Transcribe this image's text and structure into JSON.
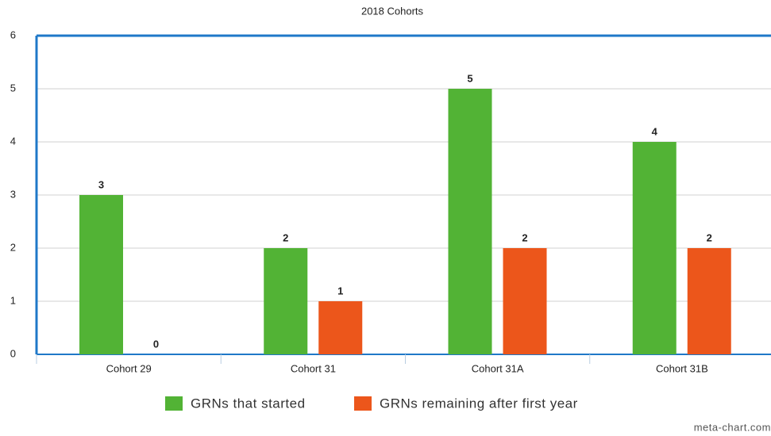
{
  "chart_data": {
    "type": "bar",
    "title": "2018 Cohorts",
    "categories": [
      "Cohort 29",
      "Cohort 31",
      "Cohort 31A",
      "Cohort 31B"
    ],
    "series": [
      {
        "name": "GRNs that started",
        "color": "#52b335",
        "values": [
          3,
          2,
          5,
          4
        ]
      },
      {
        "name": "GRNs remaining after first year",
        "color": "#ec561b",
        "values": [
          0,
          1,
          2,
          2
        ]
      }
    ],
    "ylim": [
      0,
      6
    ],
    "yticks": [
      0,
      1,
      2,
      3,
      4,
      5,
      6
    ],
    "grid": true,
    "legend": "bottom",
    "annotation": "meta-chart.com"
  }
}
